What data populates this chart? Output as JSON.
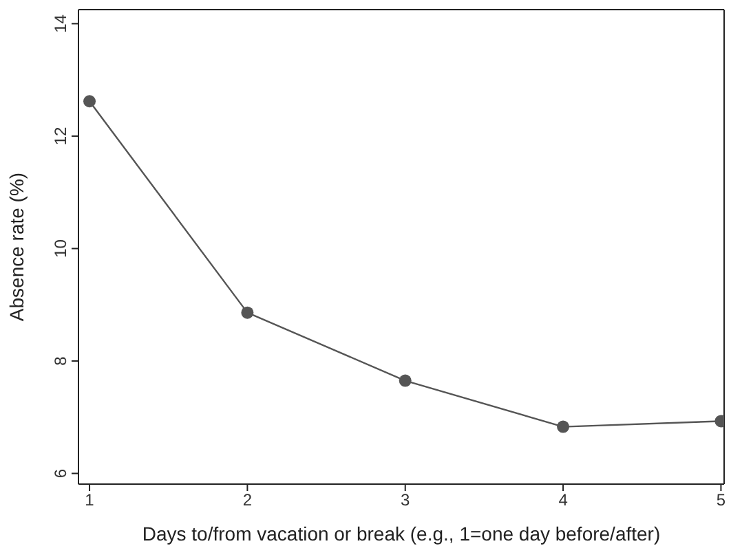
{
  "chart_data": {
    "type": "line",
    "xlabel": "Days to/from vacation or break (e.g., 1=one day before/after)",
    "ylabel": "Absence rate (%)",
    "x": [
      1,
      2,
      3,
      4,
      5
    ],
    "series": [
      {
        "color": "#555555",
        "values": [
          12.62,
          8.86,
          7.65,
          6.83,
          6.93
        ]
      }
    ],
    "xlim": [
      0.93,
      5.02
    ],
    "xticks": [
      1,
      2,
      3,
      4,
      5
    ],
    "ylim": [
      5.81,
      14.25
    ],
    "yticks": [
      6,
      8,
      10,
      12,
      14
    ],
    "marker": "circle",
    "line_style": "solid"
  }
}
